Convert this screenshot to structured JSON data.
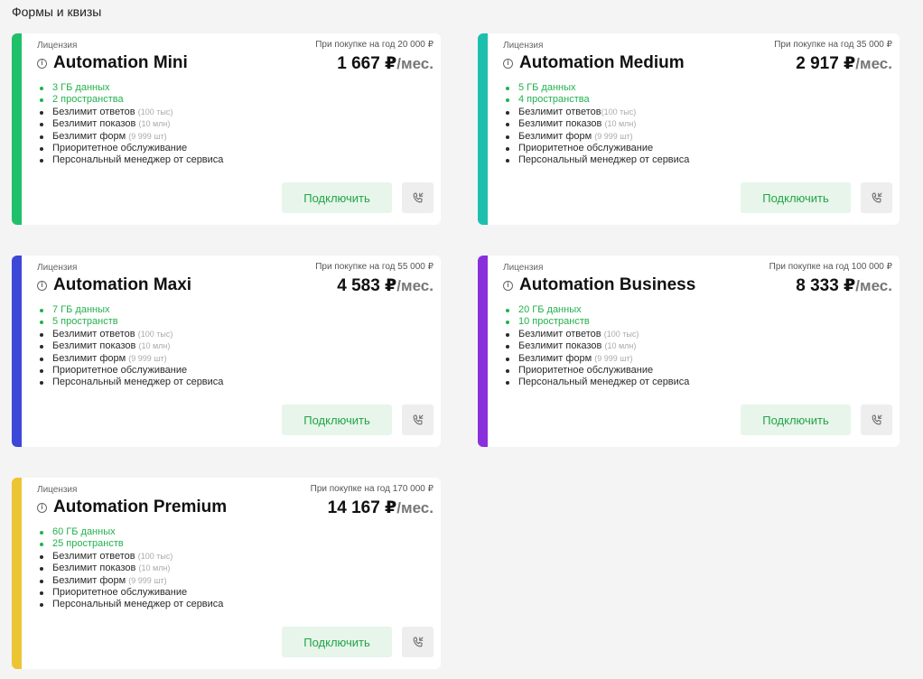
{
  "page": {
    "title": "Формы и квизы"
  },
  "common": {
    "license_label": "Лицензия",
    "per_month": "/мес.",
    "connect_label": "Подключить",
    "features": {
      "answers": "Безлимит ответов",
      "answers_note": "(100 тыс)",
      "views": "Безлимит показов",
      "views_note": "(10 млн)",
      "forms": "Безлимит форм",
      "forms_note": "(9 999 шт)",
      "priority": "Приоритетное обслуживание",
      "manager": "Персональный менеджер от сервиса"
    }
  },
  "cards": [
    {
      "name": "Automation Mini",
      "yearly": "При покупке на год 20 000 ₽",
      "price": "1 667 ₽",
      "storage": "3 ГБ данных",
      "spaces": "2 пространства",
      "accent": "#20c06a"
    },
    {
      "name": "Automation Medium",
      "yearly": "При покупке на год 35 000 ₽",
      "price": "2 917 ₽",
      "storage": "5 ГБ данных",
      "spaces": "4 пространства",
      "accent": "#1cbfae"
    },
    {
      "name": "Automation Maxi",
      "yearly": "При покупке на год 55 000 ₽",
      "price": "4 583 ₽",
      "storage": "7 ГБ данных",
      "spaces": "5 пространств",
      "accent": "#3d47d8"
    },
    {
      "name": "Automation Business",
      "yearly": "При покупке на год 100 000 ₽",
      "price": "8 333 ₽",
      "storage": "20 ГБ данных",
      "spaces": "10 пространств",
      "accent": "#8a2fdc"
    },
    {
      "name": "Automation Premium",
      "yearly": "При покупке на год 170 000 ₽",
      "price": "14 167 ₽",
      "storage": "60 ГБ данных",
      "spaces": "25 пространств",
      "accent": "#ecc534"
    }
  ]
}
